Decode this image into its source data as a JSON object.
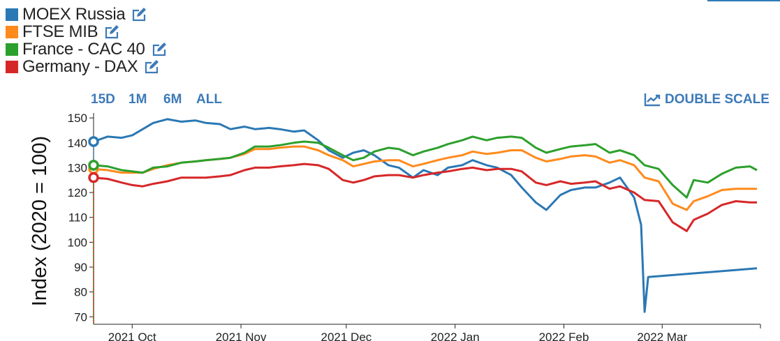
{
  "legend": [
    {
      "name": "MOEX Russia",
      "color": "#2a78b4",
      "icon": "edit-icon"
    },
    {
      "name": "FTSE MIB",
      "color": "#ff8a1c",
      "icon": "edit-icon"
    },
    {
      "name": "France - CAC 40",
      "color": "#2ca02c",
      "icon": "edit-icon"
    },
    {
      "name": "Germany - DAX",
      "color": "#d62728",
      "icon": "edit-icon"
    }
  ],
  "controls": {
    "range_15d": "15D",
    "range_1m": "1M",
    "range_6m": "6M",
    "range_all": "ALL",
    "double_scale": "DOUBLE SCALE",
    "double_scale_icon": "line-chart-icon"
  },
  "chart_data": {
    "type": "line",
    "ylabel": "Index (2020 = 100)",
    "xlabel": "",
    "ylim": [
      67,
      152
    ],
    "xlim": [
      "2021-09-20",
      "2022-03-29"
    ],
    "yticks": [
      70,
      80,
      90,
      100,
      110,
      120,
      130,
      140,
      150
    ],
    "xticks": [
      {
        "date": "2021-10-01",
        "label": "2021 Oct"
      },
      {
        "date": "2021-11-01",
        "label": "2021 Nov"
      },
      {
        "date": "2021-12-01",
        "label": "2021 Dec"
      },
      {
        "date": "2022-01-01",
        "label": "2022 Jan"
      },
      {
        "date": "2022-02-01",
        "label": "2022 Feb"
      },
      {
        "date": "2022-03-01",
        "label": "2022 Mar"
      }
    ],
    "grid": false,
    "series": [
      {
        "name": "MOEX Russia",
        "color": "#2a78b4",
        "points": [
          [
            "2021-09-20",
            140.5
          ],
          [
            "2021-09-24",
            142.5
          ],
          [
            "2021-09-28",
            142
          ],
          [
            "2021-10-01",
            143
          ],
          [
            "2021-10-04",
            145.5
          ],
          [
            "2021-10-07",
            148
          ],
          [
            "2021-10-11",
            149.5
          ],
          [
            "2021-10-15",
            148.5
          ],
          [
            "2021-10-19",
            149
          ],
          [
            "2021-10-22",
            148
          ],
          [
            "2021-10-26",
            147.5
          ],
          [
            "2021-10-29",
            145.5
          ],
          [
            "2021-11-02",
            146.5
          ],
          [
            "2021-11-05",
            145.5
          ],
          [
            "2021-11-09",
            146
          ],
          [
            "2021-11-12",
            145.5
          ],
          [
            "2021-11-16",
            144.5
          ],
          [
            "2021-11-19",
            145
          ],
          [
            "2021-11-23",
            141
          ],
          [
            "2021-11-26",
            137
          ],
          [
            "2021-11-30",
            134
          ],
          [
            "2021-12-03",
            136
          ],
          [
            "2021-12-06",
            137
          ],
          [
            "2021-12-09",
            135
          ],
          [
            "2021-12-13",
            131
          ],
          [
            "2021-12-16",
            130
          ],
          [
            "2021-12-20",
            126
          ],
          [
            "2021-12-23",
            129
          ],
          [
            "2021-12-27",
            127
          ],
          [
            "2021-12-30",
            130
          ],
          [
            "2022-01-03",
            131
          ],
          [
            "2022-01-06",
            133
          ],
          [
            "2022-01-10",
            131
          ],
          [
            "2022-01-13",
            130
          ],
          [
            "2022-01-17",
            127
          ],
          [
            "2022-01-20",
            122
          ],
          [
            "2022-01-24",
            116
          ],
          [
            "2022-01-27",
            113
          ],
          [
            "2022-01-31",
            119
          ],
          [
            "2022-02-03",
            121
          ],
          [
            "2022-02-07",
            122
          ],
          [
            "2022-02-10",
            122
          ],
          [
            "2022-02-14",
            124
          ],
          [
            "2022-02-17",
            126
          ],
          [
            "2022-02-21",
            118
          ],
          [
            "2022-02-23",
            107
          ],
          [
            "2022-02-24",
            72
          ],
          [
            "2022-02-25",
            86
          ],
          [
            "2022-03-28",
            89.5
          ]
        ]
      },
      {
        "name": "FTSE MIB",
        "color": "#ff8a1c",
        "points": [
          [
            "2021-09-20",
            129.5
          ],
          [
            "2021-09-24",
            129
          ],
          [
            "2021-09-28",
            128
          ],
          [
            "2021-10-01",
            128
          ],
          [
            "2021-10-04",
            128
          ],
          [
            "2021-10-07",
            129.5
          ],
          [
            "2021-10-11",
            131
          ],
          [
            "2021-10-15",
            132
          ],
          [
            "2021-10-19",
            132.5
          ],
          [
            "2021-10-22",
            133
          ],
          [
            "2021-10-26",
            133.5
          ],
          [
            "2021-10-29",
            134
          ],
          [
            "2021-11-02",
            135.5
          ],
          [
            "2021-11-05",
            137.5
          ],
          [
            "2021-11-09",
            137.5
          ],
          [
            "2021-11-12",
            138
          ],
          [
            "2021-11-16",
            138.5
          ],
          [
            "2021-11-19",
            138.5
          ],
          [
            "2021-11-23",
            137
          ],
          [
            "2021-11-26",
            135
          ],
          [
            "2021-11-30",
            133
          ],
          [
            "2021-12-03",
            130.5
          ],
          [
            "2021-12-06",
            131.5
          ],
          [
            "2021-12-09",
            132.5
          ],
          [
            "2021-12-13",
            133
          ],
          [
            "2021-12-16",
            133
          ],
          [
            "2021-12-20",
            130.5
          ],
          [
            "2021-12-23",
            131.5
          ],
          [
            "2021-12-27",
            133
          ],
          [
            "2021-12-30",
            134
          ],
          [
            "2022-01-03",
            135
          ],
          [
            "2022-01-06",
            136.5
          ],
          [
            "2022-01-10",
            135.5
          ],
          [
            "2022-01-13",
            136
          ],
          [
            "2022-01-17",
            137
          ],
          [
            "2022-01-20",
            137
          ],
          [
            "2022-01-24",
            134
          ],
          [
            "2022-01-27",
            132.5
          ],
          [
            "2022-01-31",
            133.5
          ],
          [
            "2022-02-03",
            134.5
          ],
          [
            "2022-02-07",
            135
          ],
          [
            "2022-02-10",
            134.5
          ],
          [
            "2022-02-14",
            132
          ],
          [
            "2022-02-17",
            133
          ],
          [
            "2022-02-21",
            131
          ],
          [
            "2022-02-24",
            126
          ],
          [
            "2022-02-28",
            124.5
          ],
          [
            "2022-03-04",
            115.5
          ],
          [
            "2022-03-08",
            113
          ],
          [
            "2022-03-10",
            116.5
          ],
          [
            "2022-03-14",
            118.5
          ],
          [
            "2022-03-18",
            121
          ],
          [
            "2022-03-22",
            121.5
          ],
          [
            "2022-03-28",
            121.5
          ]
        ]
      },
      {
        "name": "France - CAC 40",
        "color": "#2ca02c",
        "points": [
          [
            "2021-09-20",
            131
          ],
          [
            "2021-09-24",
            130.5
          ],
          [
            "2021-09-28",
            129
          ],
          [
            "2021-10-01",
            128.5
          ],
          [
            "2021-10-04",
            128
          ],
          [
            "2021-10-07",
            130
          ],
          [
            "2021-10-11",
            130.5
          ],
          [
            "2021-10-15",
            132
          ],
          [
            "2021-10-19",
            132.5
          ],
          [
            "2021-10-22",
            133
          ],
          [
            "2021-10-26",
            133.5
          ],
          [
            "2021-10-29",
            134
          ],
          [
            "2021-11-02",
            136
          ],
          [
            "2021-11-05",
            138.5
          ],
          [
            "2021-11-09",
            138.5
          ],
          [
            "2021-11-12",
            139
          ],
          [
            "2021-11-16",
            140
          ],
          [
            "2021-11-19",
            140.5
          ],
          [
            "2021-11-23",
            140
          ],
          [
            "2021-11-26",
            138
          ],
          [
            "2021-11-30",
            135
          ],
          [
            "2021-12-03",
            133
          ],
          [
            "2021-12-06",
            134
          ],
          [
            "2021-12-09",
            136.5
          ],
          [
            "2021-12-13",
            138
          ],
          [
            "2021-12-16",
            137.5
          ],
          [
            "2021-12-20",
            135
          ],
          [
            "2021-12-23",
            136.5
          ],
          [
            "2021-12-27",
            138
          ],
          [
            "2021-12-30",
            139.5
          ],
          [
            "2022-01-03",
            141
          ],
          [
            "2022-01-06",
            142.5
          ],
          [
            "2022-01-10",
            141
          ],
          [
            "2022-01-13",
            142
          ],
          [
            "2022-01-17",
            142.5
          ],
          [
            "2022-01-20",
            142
          ],
          [
            "2022-01-24",
            138
          ],
          [
            "2022-01-27",
            136
          ],
          [
            "2022-01-31",
            137.5
          ],
          [
            "2022-02-03",
            138.5
          ],
          [
            "2022-02-07",
            139
          ],
          [
            "2022-02-10",
            139.5
          ],
          [
            "2022-02-14",
            136
          ],
          [
            "2022-02-17",
            137
          ],
          [
            "2022-02-21",
            135
          ],
          [
            "2022-02-24",
            131
          ],
          [
            "2022-02-28",
            129.5
          ],
          [
            "2022-03-04",
            123
          ],
          [
            "2022-03-08",
            118
          ],
          [
            "2022-03-10",
            125
          ],
          [
            "2022-03-14",
            124
          ],
          [
            "2022-03-18",
            127.5
          ],
          [
            "2022-03-22",
            130
          ],
          [
            "2022-03-26",
            130.5
          ],
          [
            "2022-03-28",
            129
          ]
        ]
      },
      {
        "name": "Germany - DAX",
        "color": "#d62728",
        "points": [
          [
            "2021-09-20",
            126
          ],
          [
            "2021-09-24",
            125.5
          ],
          [
            "2021-09-28",
            124
          ],
          [
            "2021-10-01",
            123
          ],
          [
            "2021-10-04",
            122.5
          ],
          [
            "2021-10-07",
            123.5
          ],
          [
            "2021-10-11",
            124.5
          ],
          [
            "2021-10-15",
            126
          ],
          [
            "2021-10-19",
            126
          ],
          [
            "2021-10-22",
            126
          ],
          [
            "2021-10-26",
            126.5
          ],
          [
            "2021-10-29",
            127
          ],
          [
            "2021-11-02",
            129
          ],
          [
            "2021-11-05",
            130
          ],
          [
            "2021-11-09",
            130
          ],
          [
            "2021-11-12",
            130.5
          ],
          [
            "2021-11-16",
            131
          ],
          [
            "2021-11-19",
            131.5
          ],
          [
            "2021-11-23",
            131
          ],
          [
            "2021-11-26",
            129.5
          ],
          [
            "2021-11-30",
            125
          ],
          [
            "2021-12-03",
            124
          ],
          [
            "2021-12-06",
            125
          ],
          [
            "2021-12-09",
            126.5
          ],
          [
            "2021-12-13",
            127
          ],
          [
            "2021-12-16",
            127
          ],
          [
            "2021-12-20",
            126
          ],
          [
            "2021-12-23",
            127
          ],
          [
            "2021-12-27",
            128
          ],
          [
            "2021-12-30",
            128.5
          ],
          [
            "2022-01-03",
            129.5
          ],
          [
            "2022-01-06",
            130
          ],
          [
            "2022-01-10",
            129
          ],
          [
            "2022-01-13",
            129.5
          ],
          [
            "2022-01-17",
            129.5
          ],
          [
            "2022-01-20",
            128.5
          ],
          [
            "2022-01-24",
            124
          ],
          [
            "2022-01-27",
            123
          ],
          [
            "2022-01-31",
            124.5
          ],
          [
            "2022-02-03",
            123.5
          ],
          [
            "2022-02-07",
            124
          ],
          [
            "2022-02-10",
            124.5
          ],
          [
            "2022-02-14",
            121.5
          ],
          [
            "2022-02-17",
            122.5
          ],
          [
            "2022-02-21",
            120
          ],
          [
            "2022-02-24",
            117
          ],
          [
            "2022-02-28",
            116.5
          ],
          [
            "2022-03-04",
            108
          ],
          [
            "2022-03-08",
            104.5
          ],
          [
            "2022-03-10",
            109
          ],
          [
            "2022-03-14",
            111.5
          ],
          [
            "2022-03-18",
            115
          ],
          [
            "2022-03-22",
            116.5
          ],
          [
            "2022-03-26",
            116
          ],
          [
            "2022-03-28",
            116
          ]
        ]
      }
    ]
  }
}
